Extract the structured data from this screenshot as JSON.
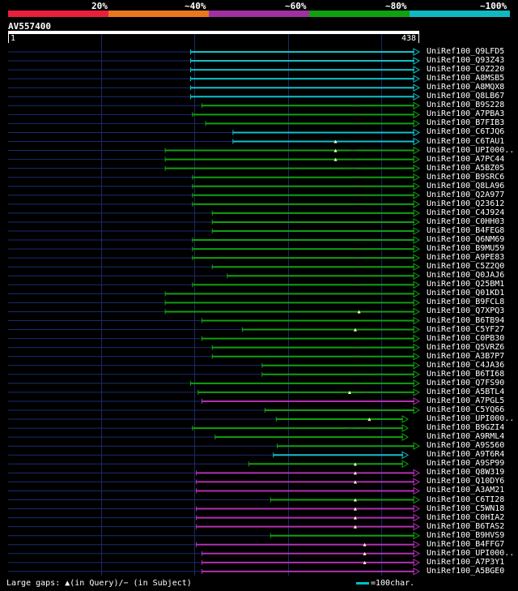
{
  "legend": {
    "colors": [
      "#e8203c",
      "#e87820",
      "#a030a0",
      "#10a010",
      "#10b8c0"
    ],
    "labels": [
      "20%",
      "~40%",
      "~60%",
      "~80%",
      "~100%"
    ]
  },
  "query": {
    "name": "AV557400",
    "start": "1",
    "end": "438",
    "length": 438
  },
  "footer": {
    "gaps_text": "Large gaps: ▲(in Query)/− (in Subject)",
    "key_text": "=100char."
  },
  "hits": [
    {
      "id": "UniRef100_Q9LFD5",
      "s": 195,
      "e": 438,
      "c": "cyan",
      "q": [],
      "d": []
    },
    {
      "id": "UniRef100_Q93Z43",
      "s": 195,
      "e": 438,
      "c": "cyan",
      "q": [],
      "d": []
    },
    {
      "id": "UniRef100_C0Z220",
      "s": 195,
      "e": 438,
      "c": "cyan",
      "q": [],
      "d": []
    },
    {
      "id": "UniRef100_A8MSB5",
      "s": 195,
      "e": 438,
      "c": "cyan",
      "q": [],
      "d": []
    },
    {
      "id": "UniRef100_A8MQX8",
      "s": 195,
      "e": 438,
      "c": "cyan",
      "q": [],
      "d": []
    },
    {
      "id": "UniRef100_Q8LB67",
      "s": 195,
      "e": 438,
      "c": "cyan",
      "q": [],
      "d": []
    },
    {
      "id": "UniRef100_B9S228",
      "s": 207,
      "e": 438,
      "c": "green",
      "q": [],
      "d": [
        372
      ]
    },
    {
      "id": "UniRef100_A7PBA3",
      "s": 197,
      "e": 438,
      "c": "green",
      "q": [],
      "d": [
        372
      ]
    },
    {
      "id": "UniRef100_B7FIB3",
      "s": 211,
      "e": 438,
      "c": "green",
      "q": [],
      "d": [
        372
      ]
    },
    {
      "id": "UniRef100_C6TJQ6",
      "s": 240,
      "e": 438,
      "c": "cyan",
      "q": [],
      "d": []
    },
    {
      "id": "UniRef100_C6TAU1",
      "s": 240,
      "e": 438,
      "c": "cyan",
      "q": [],
      "d": []
    },
    {
      "id": "UniRef100_UPI000..",
      "s": 168,
      "e": 438,
      "c": "green",
      "q": [
        349
      ],
      "d": [
        368
      ]
    },
    {
      "id": "UniRef100_A7PC44",
      "s": 168,
      "e": 438,
      "c": "green",
      "q": [
        349
      ],
      "d": [
        368
      ]
    },
    {
      "id": "UniRef100_A5BZ05",
      "s": 168,
      "e": 438,
      "c": "green",
      "q": [
        349
      ],
      "d": [
        368
      ]
    },
    {
      "id": "UniRef100_B9SRC6",
      "s": 197,
      "e": 438,
      "c": "green",
      "q": [],
      "d": [
        372
      ]
    },
    {
      "id": "UniRef100_Q8LA96",
      "s": 197,
      "e": 438,
      "c": "green",
      "q": [],
      "d": [
        372
      ]
    },
    {
      "id": "UniRef100_Q2A977",
      "s": 197,
      "e": 438,
      "c": "green",
      "q": [],
      "d": [
        372
      ]
    },
    {
      "id": "UniRef100_Q23612",
      "s": 197,
      "e": 438,
      "c": "green",
      "q": [],
      "d": [
        372
      ]
    },
    {
      "id": "UniRef100_C4J924",
      "s": 218,
      "e": 438,
      "c": "green",
      "q": [],
      "d": []
    },
    {
      "id": "UniRef100_C0HH03",
      "s": 218,
      "e": 438,
      "c": "green",
      "q": [],
      "d": []
    },
    {
      "id": "UniRef100_B4FEG8",
      "s": 218,
      "e": 438,
      "c": "green",
      "q": [],
      "d": []
    },
    {
      "id": "UniRef100_Q6NM69",
      "s": 197,
      "e": 438,
      "c": "green",
      "q": [],
      "d": []
    },
    {
      "id": "UniRef100_B9MU59",
      "s": 197,
      "e": 438,
      "c": "green",
      "q": [],
      "d": [
        372
      ]
    },
    {
      "id": "UniRef100_A9PE83",
      "s": 197,
      "e": 438,
      "c": "green",
      "q": [],
      "d": [
        372
      ]
    },
    {
      "id": "UniRef100_C5Z2Q0",
      "s": 218,
      "e": 438,
      "c": "green",
      "q": [],
      "d": [
        374
      ]
    },
    {
      "id": "UniRef100_Q0JAJ6",
      "s": 234,
      "e": 438,
      "c": "green",
      "q": [],
      "d": []
    },
    {
      "id": "UniRef100_Q25BM1",
      "s": 197,
      "e": 438,
      "c": "green",
      "q": [],
      "d": [
        372
      ]
    },
    {
      "id": "UniRef100_Q01KD1",
      "s": 168,
      "e": 438,
      "c": "green",
      "q": [],
      "d": []
    },
    {
      "id": "UniRef100_B9FCL8",
      "s": 168,
      "e": 438,
      "c": "green",
      "q": [],
      "d": []
    },
    {
      "id": "UniRef100_Q7XPQ3",
      "s": 168,
      "e": 438,
      "c": "green",
      "q": [],
      "d": []
    },
    {
      "id": "UniRef100_B6TB94",
      "s": 207,
      "e": 438,
      "c": "green",
      "q": [
        374
      ],
      "d": []
    },
    {
      "id": "UniRef100_C5YF27",
      "s": 250,
      "e": 438,
      "c": "green",
      "q": [],
      "d": []
    },
    {
      "id": "UniRef100_C0PB30",
      "s": 207,
      "e": 438,
      "c": "green",
      "q": [
        370
      ],
      "d": []
    },
    {
      "id": "UniRef100_Q5VRZ6",
      "s": 218,
      "e": 438,
      "c": "green",
      "q": [],
      "d": [
        372
      ]
    },
    {
      "id": "UniRef100_A3B7P7",
      "s": 218,
      "e": 438,
      "c": "green",
      "q": [],
      "d": [
        372
      ]
    },
    {
      "id": "UniRef100_C4JA36",
      "s": 271,
      "e": 438,
      "c": "green",
      "q": [],
      "d": []
    },
    {
      "id": "UniRef100_B6TI68",
      "s": 271,
      "e": 438,
      "c": "green",
      "q": [],
      "d": []
    },
    {
      "id": "UniRef100_Q7FS90",
      "s": 195,
      "e": 438,
      "c": "green",
      "q": [],
      "d": [
        370
      ]
    },
    {
      "id": "UniRef100_A5BTL4",
      "s": 203,
      "e": 438,
      "c": "green",
      "q": [],
      "d": [
        382
      ]
    },
    {
      "id": "UniRef100_A7PGL5",
      "s": 207,
      "e": 438,
      "c": "purple",
      "q": [
        364
      ],
      "d": []
    },
    {
      "id": "UniRef100_C5YQ66",
      "s": 274,
      "e": 438,
      "c": "green",
      "q": [],
      "d": []
    },
    {
      "id": "UniRef100_UPI000..",
      "s": 286,
      "e": 426,
      "c": "green",
      "q": [],
      "d": []
    },
    {
      "id": "UniRef100_B9GZI4",
      "s": 197,
      "e": 426,
      "c": "green",
      "q": [
        385
      ],
      "d": [
        365,
        380
      ]
    },
    {
      "id": "UniRef100_A9RML4",
      "s": 221,
      "e": 426,
      "c": "green",
      "q": [],
      "d": []
    },
    {
      "id": "UniRef100_A9S560",
      "s": 287,
      "e": 438,
      "c": "green",
      "q": [],
      "d": []
    },
    {
      "id": "UniRef100_A9T6R4",
      "s": 283,
      "e": 426,
      "c": "cyan",
      "q": [],
      "d": []
    },
    {
      "id": "UniRef100_A9SP99",
      "s": 257,
      "e": 426,
      "c": "green",
      "q": [],
      "d": []
    },
    {
      "id": "UniRef100_Q8W319",
      "s": 201,
      "e": 438,
      "c": "purple",
      "q": [
        370
      ],
      "d": []
    },
    {
      "id": "UniRef100_Q10DY6",
      "s": 201,
      "e": 438,
      "c": "purple",
      "q": [
        370
      ],
      "d": []
    },
    {
      "id": "UniRef100_A3AM21",
      "s": 201,
      "e": 438,
      "c": "purple",
      "q": [
        370
      ],
      "d": []
    },
    {
      "id": "UniRef100_C6TI28",
      "s": 280,
      "e": 438,
      "c": "green",
      "q": [],
      "d": []
    },
    {
      "id": "UniRef100_C5WN18",
      "s": 201,
      "e": 438,
      "c": "purple",
      "q": [
        370
      ],
      "d": []
    },
    {
      "id": "UniRef100_C0HIA2",
      "s": 201,
      "e": 438,
      "c": "purple",
      "q": [
        370
      ],
      "d": []
    },
    {
      "id": "UniRef100_B6TAS2",
      "s": 201,
      "e": 438,
      "c": "purple",
      "q": [
        370
      ],
      "d": []
    },
    {
      "id": "UniRef100_B9HVS9",
      "s": 280,
      "e": 438,
      "c": "green",
      "q": [
        370
      ],
      "d": []
    },
    {
      "id": "UniRef100_B4FFG7",
      "s": 201,
      "e": 438,
      "c": "purple",
      "q": [],
      "d": []
    },
    {
      "id": "UniRef100_UPI000..",
      "s": 207,
      "e": 438,
      "c": "purple",
      "q": [
        380
      ],
      "d": []
    },
    {
      "id": "UniRef100_A7P3Y1",
      "s": 207,
      "e": 438,
      "c": "purple",
      "q": [
        380
      ],
      "d": []
    },
    {
      "id": "UniRef100_A5BGE0",
      "s": 207,
      "e": 438,
      "c": "purple",
      "q": [
        380
      ],
      "d": []
    }
  ]
}
